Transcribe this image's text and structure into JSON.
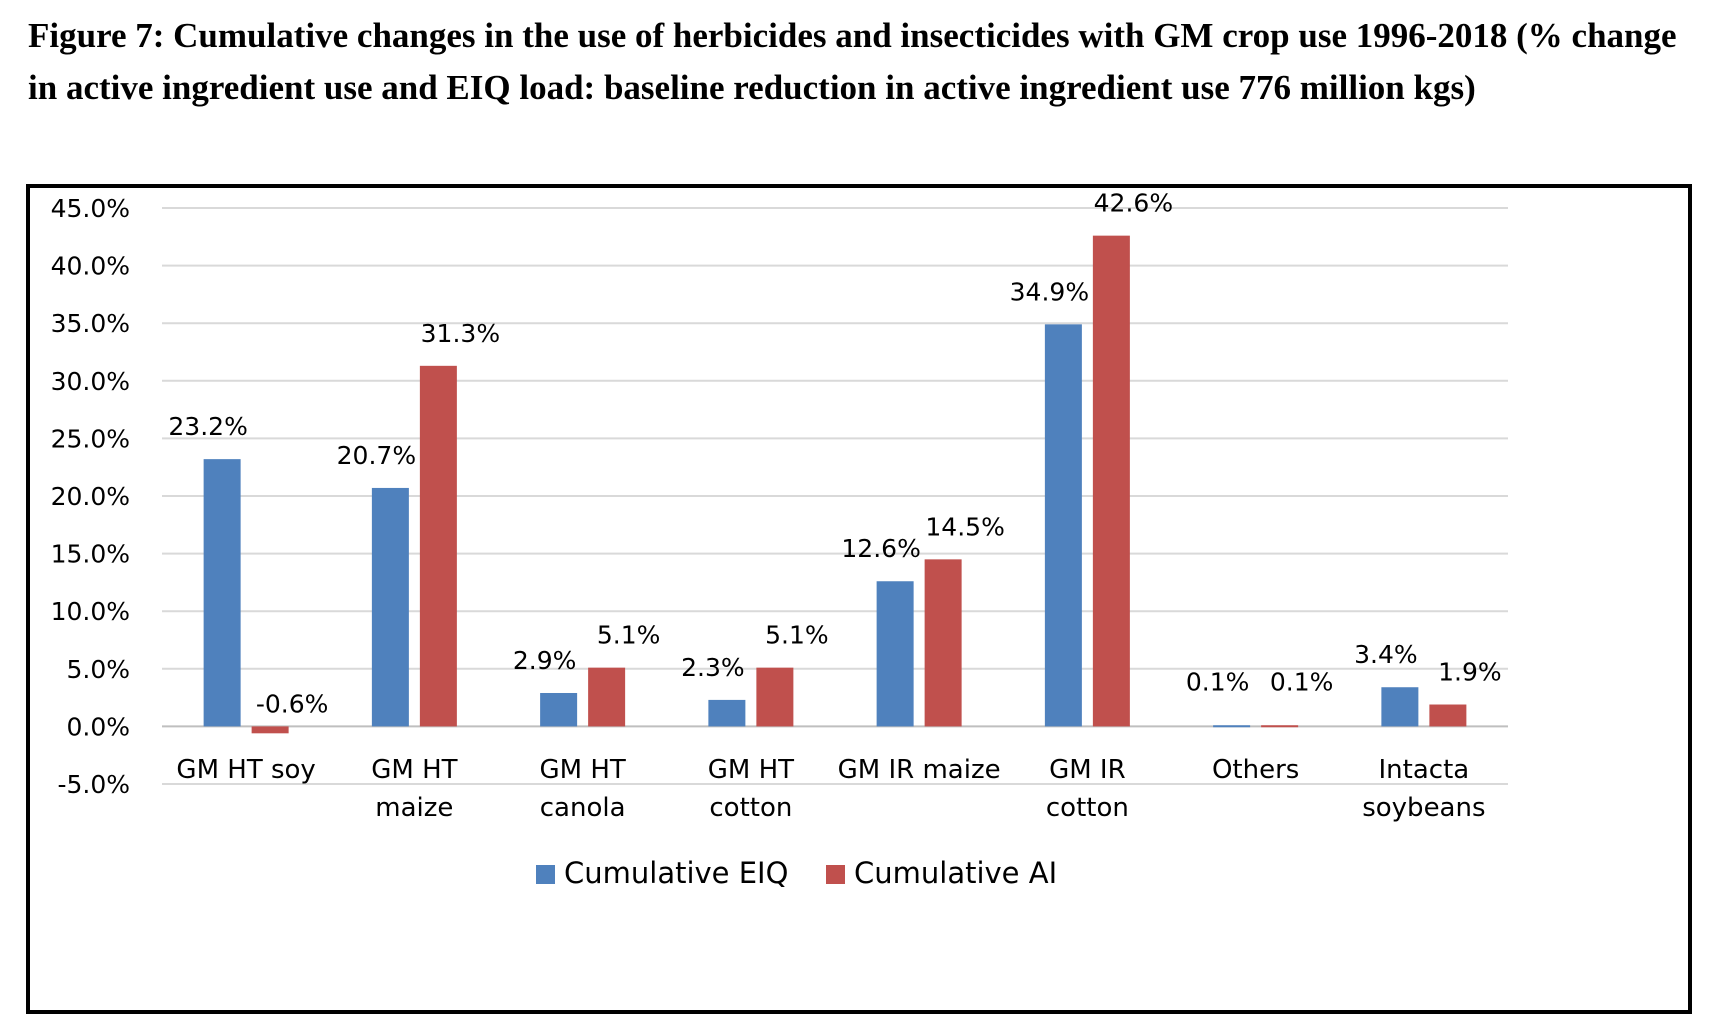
{
  "figure": {
    "title": "Figure 7: Cumulative changes in the use of herbicides and insecticides with GM crop use 1996-2018 (% change in active ingredient use and EIQ load: baseline reduction in active ingredient use 776 million kgs)"
  },
  "chart_data": {
    "type": "bar",
    "title": "",
    "xlabel": "",
    "ylabel": "",
    "categories": [
      [
        "GM HT soy"
      ],
      [
        "GM HT",
        "maize"
      ],
      [
        "GM HT",
        "canola"
      ],
      [
        "GM HT",
        "cotton"
      ],
      [
        "GM IR maize"
      ],
      [
        "GM IR",
        "cotton"
      ],
      [
        "Others"
      ],
      [
        "Intacta",
        "soybeans"
      ]
    ],
    "series": [
      {
        "name": "Cumulative EIQ",
        "color": "#4F81BD",
        "values": [
          23.2,
          20.7,
          2.9,
          2.3,
          12.6,
          34.9,
          0.1,
          3.4
        ],
        "labels": [
          "23.2%",
          "20.7%",
          "2.9%",
          "2.3%",
          "12.6%",
          "34.9%",
          "0.1%",
          "3.4%"
        ]
      },
      {
        "name": "Cumulative AI",
        "color": "#C0504D",
        "values": [
          -0.6,
          31.3,
          5.1,
          5.1,
          14.5,
          42.6,
          0.1,
          1.9
        ],
        "labels": [
          "-0.6%",
          "31.3%",
          "5.1%",
          "5.1%",
          "14.5%",
          "42.6%",
          "0.1%",
          "1.9%"
        ]
      }
    ],
    "ylim": [
      -5,
      45
    ],
    "yticks": [
      -5,
      0,
      5,
      10,
      15,
      20,
      25,
      30,
      35,
      40,
      45
    ],
    "ytick_labels": [
      "-5.0%",
      "0.0%",
      "5.0%",
      "10.0%",
      "15.0%",
      "20.0%",
      "25.0%",
      "30.0%",
      "35.0%",
      "40.0%",
      "45.0%"
    ],
    "grid": true,
    "legend_position": "bottom"
  }
}
